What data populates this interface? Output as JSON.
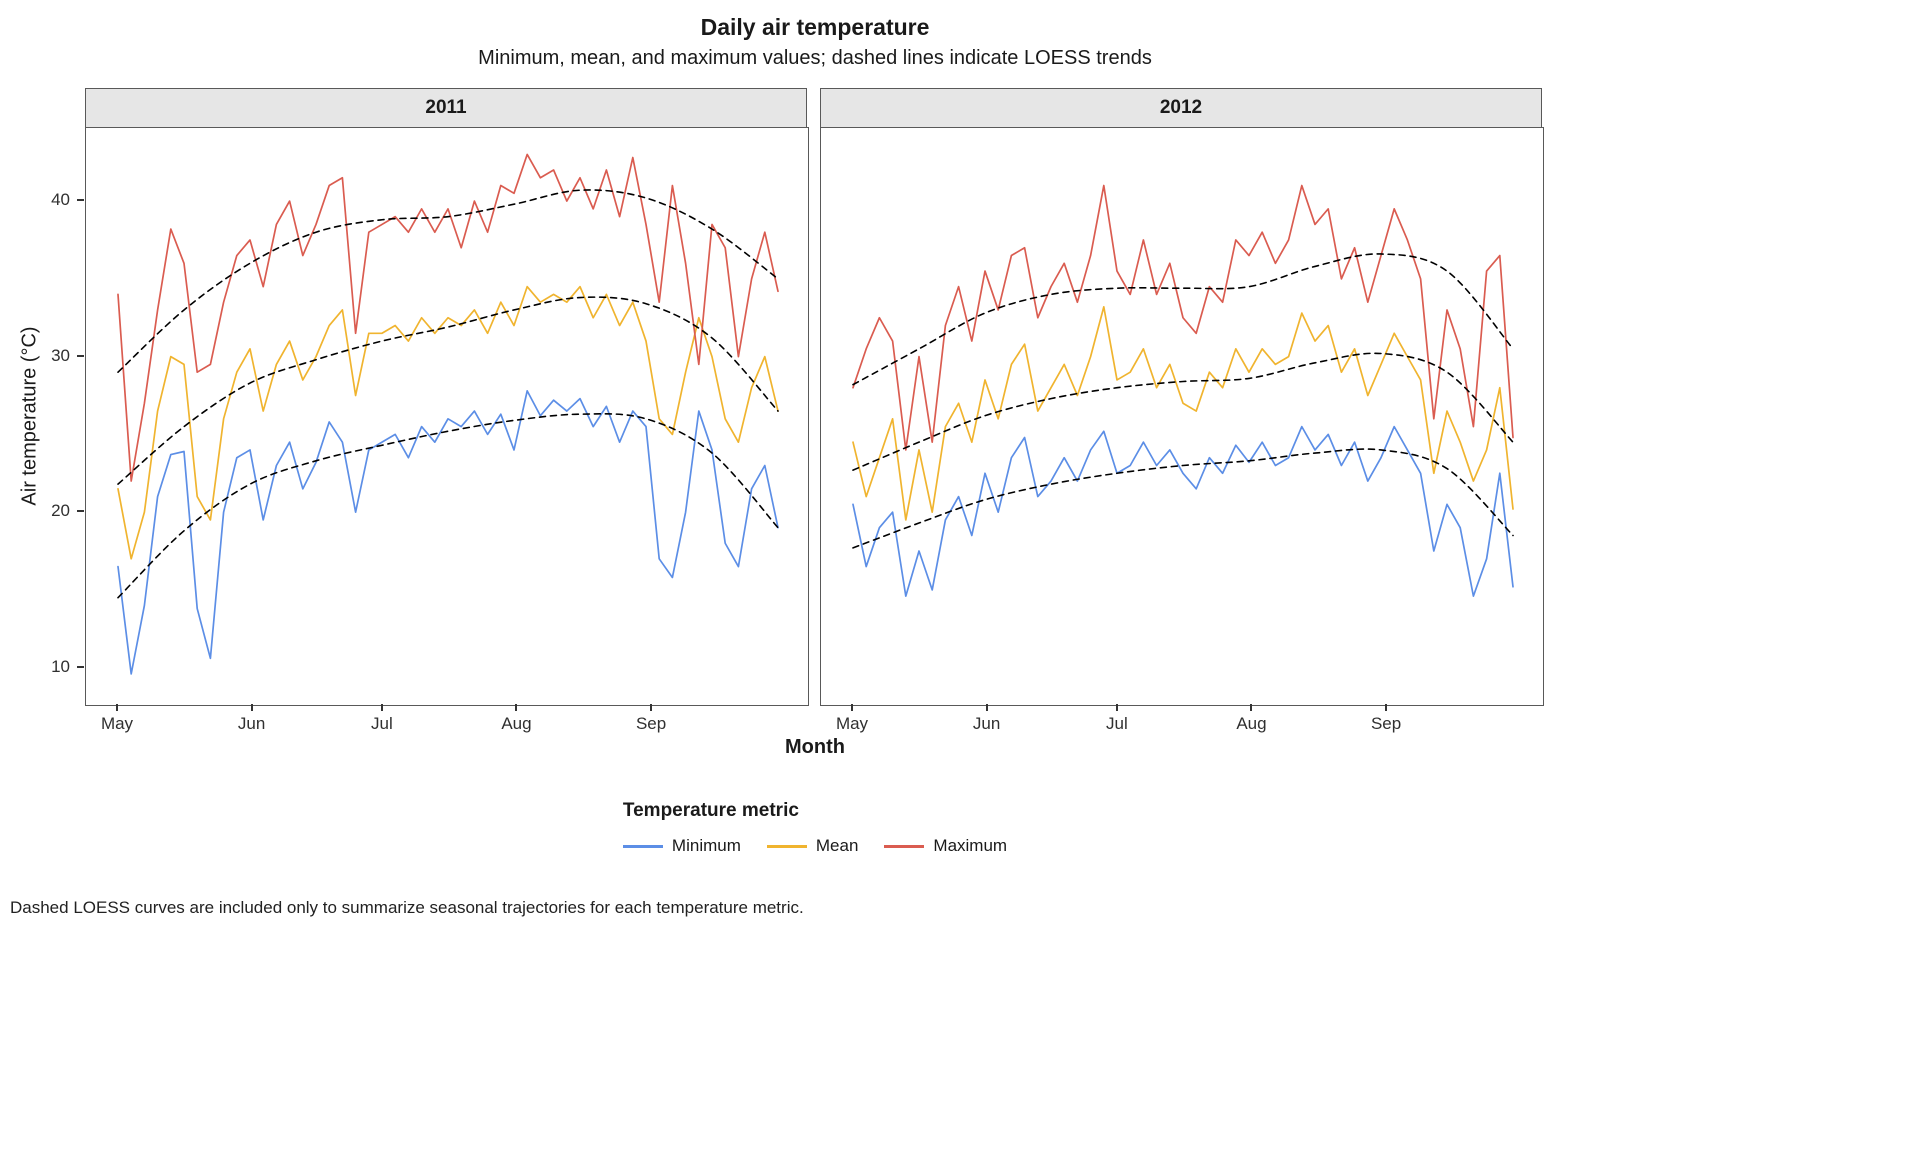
{
  "title": "Daily air temperature",
  "subtitle": "Minimum, mean, and maximum values; dashed lines indicate LOESS trends",
  "caption": "Dashed LOESS curves are included only to summarize seasonal trajectories for each temperature metric.",
  "x_axis": {
    "label": "Month",
    "ticks": [
      "May",
      "Jun",
      "Jul",
      "Aug",
      "Sep"
    ]
  },
  "y_axis": {
    "label": "Air temperature (°C)",
    "ticks": [
      10,
      20,
      30,
      40
    ]
  },
  "legend": {
    "title": "Temperature metric",
    "items": [
      {
        "label": "Minimum",
        "color": "#5C8EE6"
      },
      {
        "label": "Mean",
        "color": "#F0B42F"
      },
      {
        "label": "Maximum",
        "color": "#DA5C50"
      }
    ]
  },
  "style": {
    "trend_color": "#000000",
    "strip_fill": "#E6E6E6",
    "panel_border": "#595959"
  },
  "chart_data": {
    "type": "line",
    "title": "Daily air temperature",
    "x_unit": "days since May 1; series values sampled every ~3 days, LOESS trends every ~15 days",
    "x_range": [
      0,
      152
    ],
    "y_range": [
      7.6,
      44.7
    ],
    "month_tick_days": [
      0,
      31,
      61,
      92,
      123
    ],
    "month_tick_labels": [
      "May",
      "Jun",
      "Jul",
      "Aug",
      "Sep"
    ],
    "grid": false,
    "legend_position": "bottom",
    "facets": [
      {
        "label": "2011",
        "series": [
          {
            "name": "Minimum",
            "color": "#5C8EE6",
            "values": [
              16.5,
              9.6,
              14,
              21,
              23.7,
              23.9,
              13.8,
              10.6,
              20,
              23.5,
              24,
              19.5,
              23,
              24.5,
              21.5,
              23.2,
              25.8,
              24.5,
              20,
              24,
              24.5,
              25,
              23.5,
              25.5,
              24.5,
              26,
              25.5,
              26.5,
              25,
              26.3,
              24,
              27.8,
              26.2,
              27.2,
              26.5,
              27.3,
              25.5,
              26.8,
              24.5,
              26.5,
              25.5,
              17,
              15.8,
              20,
              26.5,
              24,
              18,
              16.5,
              21.5,
              23,
              19
            ]
          },
          {
            "name": "Mean",
            "color": "#F0B42F",
            "values": [
              21.5,
              17,
              20,
              26.5,
              30,
              29.5,
              21,
              19.5,
              26,
              29,
              30.5,
              26.5,
              29.5,
              31,
              28.5,
              30,
              32,
              33,
              27.5,
              31.5,
              31.5,
              32,
              31,
              32.5,
              31.5,
              32.5,
              32,
              33,
              31.5,
              33.5,
              32,
              34.5,
              33.5,
              34,
              33.5,
              34.5,
              32.5,
              34,
              32,
              33.5,
              31,
              26,
              25,
              29,
              32.5,
              30,
              26,
              24.5,
              28,
              30,
              26.5
            ]
          },
          {
            "name": "Maximum",
            "color": "#DA5C50",
            "values": [
              34,
              22,
              27,
              33,
              38.2,
              36,
              29,
              29.5,
              33.5,
              36.5,
              37.5,
              34.5,
              38.5,
              40,
              36.5,
              38.5,
              41,
              41.5,
              31.5,
              38,
              38.5,
              39,
              38,
              39.5,
              38,
              39.5,
              37,
              40,
              38,
              41,
              40.5,
              43,
              41.5,
              42,
              40,
              41.5,
              39.5,
              42,
              39,
              42.8,
              38.5,
              33.5,
              41,
              36,
              29.5,
              38.5,
              37,
              30,
              35,
              38,
              34.2
            ]
          }
        ],
        "loess_trends": [
          {
            "name": "Minimum",
            "values": [
              14.5,
              18.8,
              21.8,
              23.3,
              24.3,
              25.2,
              25.9,
              26.3,
              26,
              23.8,
              19
            ]
          },
          {
            "name": "Mean",
            "values": [
              21.8,
              25.5,
              28.3,
              29.8,
              31,
              31.9,
              33,
              33.8,
              33.4,
              31.2,
              26.5
            ]
          },
          {
            "name": "Maximum",
            "values": [
              29,
              33,
              36,
              38,
              38.8,
              39,
              39.8,
              40.7,
              40.2,
              38.2,
              35
            ]
          }
        ]
      },
      {
        "label": "2012",
        "series": [
          {
            "name": "Minimum",
            "color": "#5C8EE6",
            "values": [
              20.5,
              16.5,
              19,
              20,
              14.6,
              17.5,
              15,
              19.5,
              21,
              18.5,
              22.5,
              20,
              23.5,
              24.8,
              21,
              22,
              23.5,
              22,
              24,
              25.2,
              22.5,
              23,
              24.5,
              23,
              24,
              22.5,
              21.5,
              23.5,
              22.5,
              24.3,
              23.2,
              24.5,
              23,
              23.5,
              25.5,
              24,
              25,
              23,
              24.5,
              22,
              23.5,
              25.5,
              24,
              22.5,
              17.5,
              20.5,
              19,
              14.6,
              17,
              22.5,
              15.2
            ]
          },
          {
            "name": "Mean",
            "color": "#F0B42F",
            "values": [
              24.5,
              21,
              23.5,
              26,
              19.5,
              24,
              20,
              25.5,
              27,
              24.5,
              28.5,
              26,
              29.5,
              30.8,
              26.5,
              28,
              29.5,
              27.5,
              30,
              33.2,
              28.5,
              29,
              30.5,
              28,
              29.5,
              27,
              26.5,
              29,
              28,
              30.5,
              29,
              30.5,
              29.5,
              30,
              32.8,
              31,
              32,
              29,
              30.5,
              27.5,
              29.5,
              31.5,
              30,
              28.5,
              22.5,
              26.5,
              24.5,
              22,
              24,
              28,
              20.2
            ]
          },
          {
            "name": "Maximum",
            "color": "#DA5C50",
            "values": [
              28,
              30.5,
              32.5,
              31,
              24,
              30,
              24.5,
              32,
              34.5,
              31,
              35.5,
              33,
              36.5,
              37,
              32.5,
              34.5,
              36,
              33.5,
              36.5,
              41,
              35.5,
              34,
              37.5,
              34,
              36,
              32.5,
              31.5,
              34.5,
              33.5,
              37.5,
              36.5,
              38,
              36,
              37.5,
              41,
              38.5,
              39.5,
              35,
              37,
              33.5,
              36.5,
              39.5,
              37.5,
              35,
              26,
              33,
              30.5,
              25.5,
              35.5,
              36.5,
              24.8
            ]
          }
        ],
        "loess_trends": [
          {
            "name": "Minimum",
            "values": [
              17.7,
              19.3,
              20.8,
              21.8,
              22.5,
              23,
              23.3,
              23.8,
              24,
              22.8,
              18.5
            ]
          },
          {
            "name": "Mean",
            "values": [
              22.7,
              24.5,
              26.2,
              27.3,
              28,
              28.4,
              28.6,
              29.6,
              30.2,
              29,
              24.5
            ]
          },
          {
            "name": "Maximum",
            "values": [
              28.2,
              30.5,
              32.8,
              34,
              34.4,
              34.4,
              34.5,
              35.8,
              36.6,
              35.5,
              30.5
            ]
          }
        ]
      }
    ]
  }
}
